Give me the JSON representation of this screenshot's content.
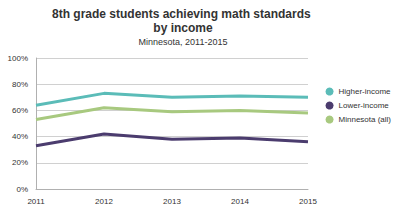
{
  "chart_data": {
    "type": "line",
    "title": "8th grade students achieving math standards by income",
    "subtitle": "Minnesota, 2011-2015",
    "categories": [
      "2011",
      "2012",
      "2013",
      "2014",
      "2015"
    ],
    "series": [
      {
        "name": "Higher-income",
        "color": "#5bbcb8",
        "values": [
          64,
          73,
          70,
          71,
          70
        ]
      },
      {
        "name": "Lower-income",
        "color": "#4b3c6e",
        "values": [
          33,
          42,
          38,
          39,
          36
        ]
      },
      {
        "name": "Minnesota (all)",
        "color": "#a8c97f",
        "values": [
          53,
          62,
          59,
          60,
          58
        ]
      }
    ],
    "ylim": [
      0,
      100
    ],
    "yticks": [
      {
        "value": 0,
        "label": "0%"
      },
      {
        "value": 20,
        "label": "20%"
      },
      {
        "value": 40,
        "label": "40%"
      },
      {
        "value": 60,
        "label": "60%"
      },
      {
        "value": 80,
        "label": "80%"
      },
      {
        "value": 100,
        "label": "100%"
      }
    ],
    "grid": true,
    "legend": "right"
  }
}
